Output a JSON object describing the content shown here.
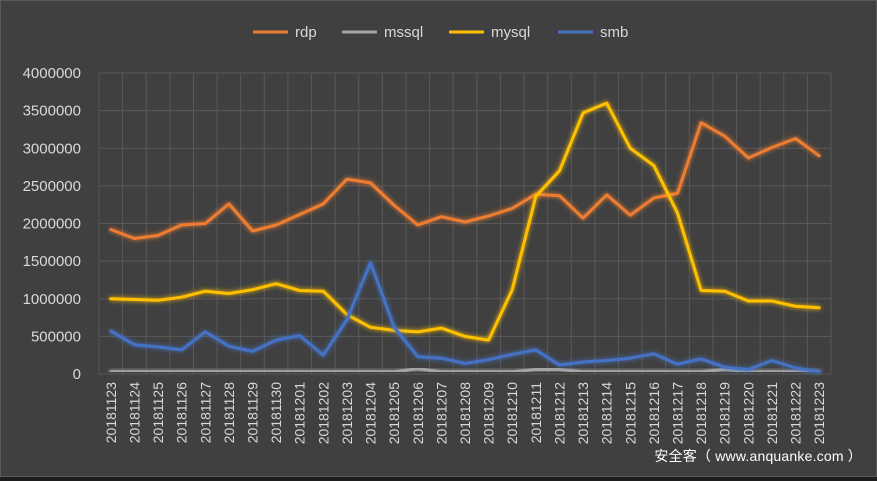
{
  "chart_data": {
    "type": "line",
    "title": "",
    "xlabel": "",
    "ylabel": "",
    "ylim": [
      0,
      4000000
    ],
    "yticks": [
      0,
      500000,
      1000000,
      1500000,
      2000000,
      2500000,
      3000000,
      3500000,
      4000000
    ],
    "grid": true,
    "legend_position": "top",
    "categories": [
      "20181123",
      "20181124",
      "20181125",
      "20181126",
      "20181127",
      "20181128",
      "20181129",
      "20181130",
      "20181201",
      "20181202",
      "20181203",
      "20181204",
      "20181205",
      "20181206",
      "20181207",
      "20181208",
      "20181209",
      "20181210",
      "20181211",
      "20181212",
      "20181213",
      "20181214",
      "20181215",
      "20181216",
      "20181217",
      "20181218",
      "20181219",
      "20181220",
      "20181221",
      "20181222",
      "20181223"
    ],
    "series": [
      {
        "name": "rdp",
        "color": "#ed7d31",
        "values": [
          1920000,
          1800000,
          1840000,
          1980000,
          2000000,
          2260000,
          1900000,
          1980000,
          2120000,
          2260000,
          2590000,
          2540000,
          2240000,
          1980000,
          2090000,
          2020000,
          2100000,
          2200000,
          2390000,
          2370000,
          2070000,
          2380000,
          2110000,
          2340000,
          2400000,
          3340000,
          3160000,
          2870000,
          3010000,
          3130000,
          2900000
        ]
      },
      {
        "name": "mssql",
        "color": "#a5a5a5",
        "values": [
          30000,
          30000,
          30000,
          30000,
          30000,
          30000,
          30000,
          30000,
          30000,
          30000,
          30000,
          30000,
          30000,
          70000,
          30000,
          30000,
          30000,
          30000,
          60000,
          60000,
          30000,
          30000,
          30000,
          30000,
          30000,
          30000,
          60000,
          30000,
          30000,
          30000,
          30000
        ]
      },
      {
        "name": "mysql",
        "color": "#ffc000",
        "values": [
          1000000,
          990000,
          980000,
          1020000,
          1100000,
          1070000,
          1120000,
          1200000,
          1110000,
          1100000,
          790000,
          620000,
          580000,
          560000,
          610000,
          500000,
          450000,
          1120000,
          2360000,
          2700000,
          3470000,
          3600000,
          3000000,
          2770000,
          2140000,
          1110000,
          1100000,
          970000,
          970000,
          900000,
          880000
        ]
      },
      {
        "name": "smb",
        "color": "#4472c4",
        "values": [
          570000,
          390000,
          360000,
          320000,
          560000,
          370000,
          300000,
          450000,
          510000,
          250000,
          720000,
          1480000,
          620000,
          230000,
          210000,
          140000,
          190000,
          260000,
          320000,
          120000,
          160000,
          180000,
          210000,
          270000,
          130000,
          200000,
          90000,
          60000,
          180000,
          80000,
          30000
        ]
      }
    ]
  },
  "watermark": "安全客（ www.anquanke.com ）"
}
